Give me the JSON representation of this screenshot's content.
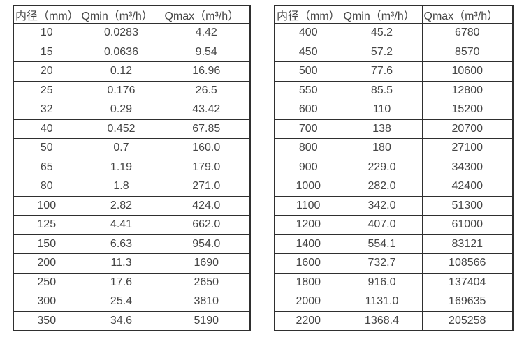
{
  "style": {
    "border_color": "#2f2f2f",
    "text_color": "#454545",
    "background_color": "#ffffff"
  },
  "tables": [
    {
      "name": "flow-spec-small-diameters",
      "headers": [
        "内径（mm）",
        "Qmin（m³/h）",
        "Qmax（m³/h）"
      ],
      "rows": [
        [
          "10",
          "0.0283",
          "4.42"
        ],
        [
          "15",
          "0.0636",
          "9.54"
        ],
        [
          "20",
          "0.12",
          "16.96"
        ],
        [
          "25",
          "0.176",
          "26.5"
        ],
        [
          "32",
          "0.29",
          "43.42"
        ],
        [
          "40",
          "0.452",
          "67.85"
        ],
        [
          "50",
          "0.7",
          "160.0"
        ],
        [
          "65",
          "1.19",
          "179.0"
        ],
        [
          "80",
          "1.8",
          "271.0"
        ],
        [
          "100",
          "2.82",
          "424.0"
        ],
        [
          "125",
          "4.41",
          "662.0"
        ],
        [
          "150",
          "6.63",
          "954.0"
        ],
        [
          "200",
          "11.3",
          "1690"
        ],
        [
          "250",
          "17.6",
          "2650"
        ],
        [
          "300",
          "25.4",
          "3810"
        ],
        [
          "350",
          "34.6",
          "5190"
        ]
      ]
    },
    {
      "name": "flow-spec-large-diameters",
      "headers": [
        "内径（mm）",
        "Qmin（m³/h）",
        "Qmax（m³/h）"
      ],
      "rows": [
        [
          "400",
          "45.2",
          "6780"
        ],
        [
          "450",
          "57.2",
          "8570"
        ],
        [
          "500",
          "77.6",
          "10600"
        ],
        [
          "550",
          "85.5",
          "12800"
        ],
        [
          "600",
          "110",
          "15200"
        ],
        [
          "700",
          "138",
          "20700"
        ],
        [
          "800",
          "180",
          "27100"
        ],
        [
          "900",
          "229.0",
          "34300"
        ],
        [
          "1000",
          "282.0",
          "42400"
        ],
        [
          "1100",
          "342.0",
          "51300"
        ],
        [
          "1200",
          "407.0",
          "61000"
        ],
        [
          "1400",
          "554.1",
          "83121"
        ],
        [
          "1600",
          "732.7",
          "108566"
        ],
        [
          "1800",
          "916.0",
          "137404"
        ],
        [
          "2000",
          "1131.0",
          "169635"
        ],
        [
          "2200",
          "1368.4",
          "205258"
        ]
      ]
    }
  ]
}
